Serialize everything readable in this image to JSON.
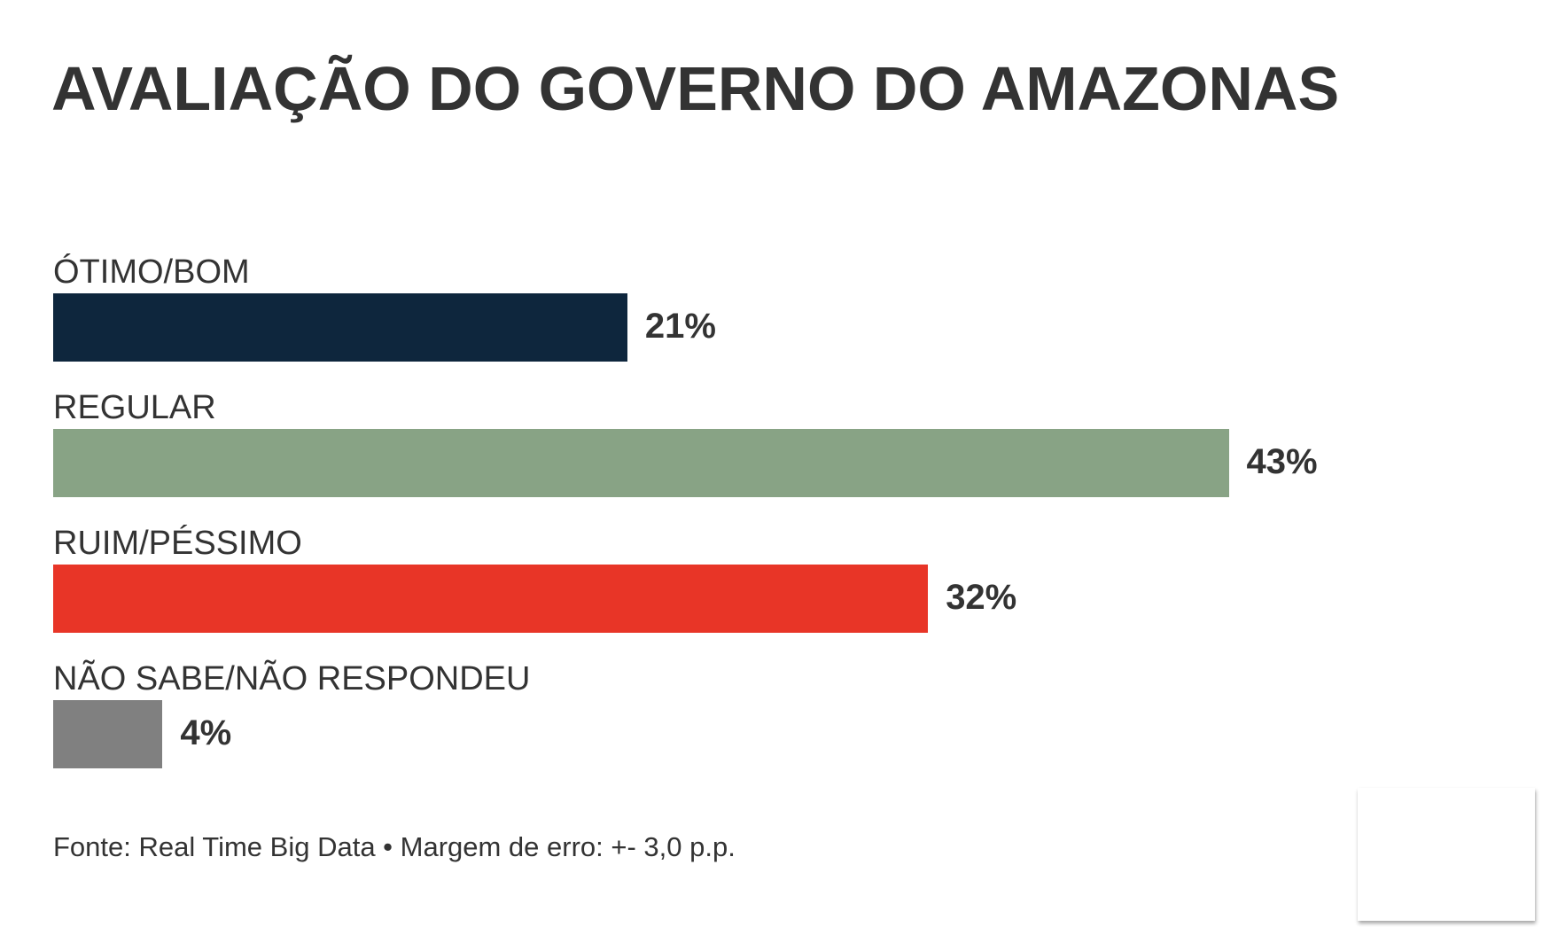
{
  "chart_data": {
    "type": "bar",
    "orientation": "horizontal",
    "title": "AVALIAÇÃO DO GOVERNO DO AMAZONAS",
    "categories": [
      "ÓTIMO/BOM",
      "REGULAR",
      "RUIM/PÉSSIMO",
      "NÃO SABE/NÃO RESPONDEU"
    ],
    "values": [
      21,
      43,
      32,
      4
    ],
    "value_labels": [
      "21%",
      "43%",
      "32%",
      "4%"
    ],
    "colors": [
      "#0e263d",
      "#88a385",
      "#e83527",
      "#808080"
    ],
    "unit": "%",
    "grid": false,
    "legend": "none"
  },
  "footer": "Fonte: Real Time Big Data • Margem de erro: +- 3,0 p.p."
}
